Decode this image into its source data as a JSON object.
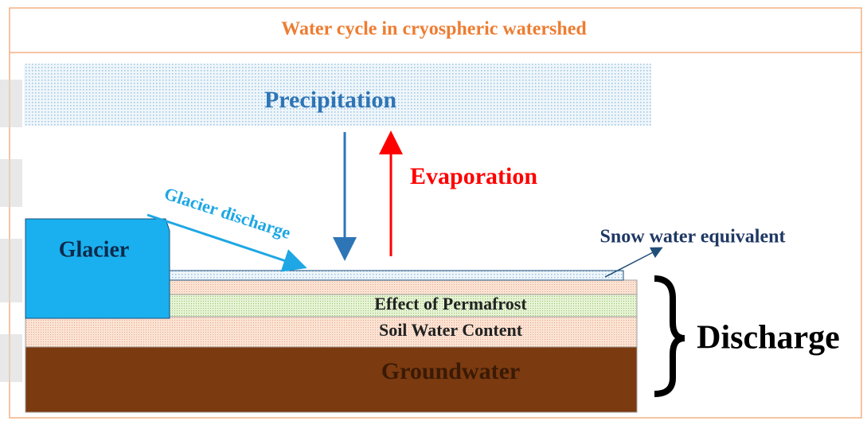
{
  "title": "Water cycle in cryospheric watershed",
  "labels": {
    "precipitation": "Precipitation",
    "evaporation": "Evaporation",
    "glacier": "Glacier",
    "glacier_discharge": "Glacier discharge",
    "snow_water_equivalent": "Snow water equivalent",
    "permafrost": "Effect of Permafrost",
    "soil_water": "Soil Water Content",
    "groundwater": "Groundwater",
    "discharge": "Discharge"
  }
}
